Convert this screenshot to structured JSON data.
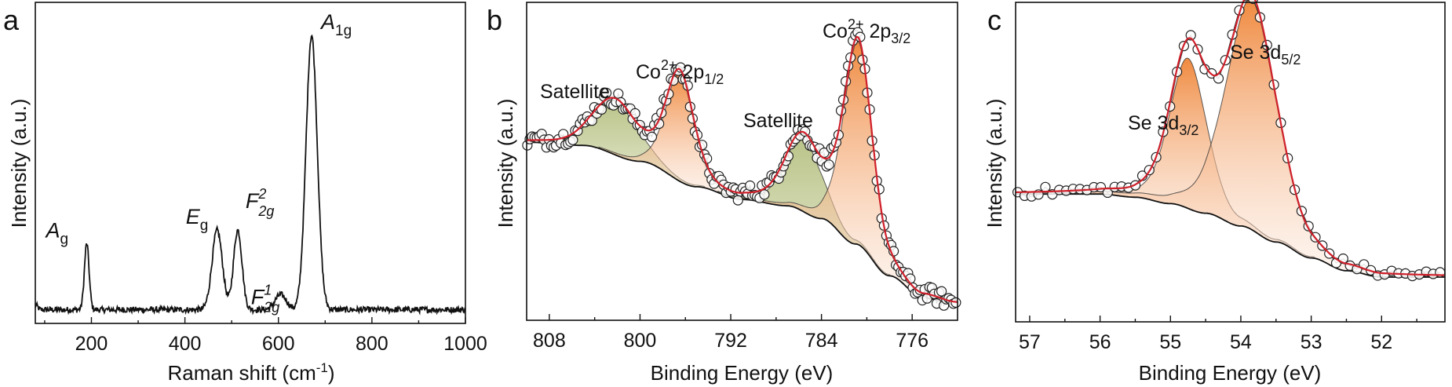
{
  "figure": {
    "colors": {
      "axis": "#111111",
      "spectrum": "#111111",
      "fit_envelope": "#d0202a",
      "orange_peak": "#f08a3c",
      "satellite_peak": "#b9c38c",
      "marker_edge": "#222222",
      "component_light": "#c8c8c8"
    }
  },
  "chart_data": [
    {
      "id": "a",
      "type": "line",
      "panel_label": "a",
      "title": "",
      "xlabel": "Raman shift (cm⁻¹)",
      "xlabel_main": "Raman shift (cm",
      "xlabel_sup": "-1",
      "xlabel_close": ")",
      "ylabel": "Intensity (a.u.)",
      "xlim": [
        80,
        1000
      ],
      "ylim": [
        -0.05,
        1.12
      ],
      "x_reversed": false,
      "xticks": [
        200,
        400,
        600,
        800,
        1000
      ],
      "xticks_minor": [
        100,
        300,
        500,
        700,
        900
      ],
      "yticks": [],
      "grid": false,
      "baseline": 0,
      "peaks": [
        {
          "label": "A_g",
          "main": "A",
          "sub": "g",
          "sup": "",
          "position": 190,
          "intensity": 0.24,
          "width": 5
        },
        {
          "label": "E_g",
          "main": "E",
          "sub": "g",
          "sup": "",
          "position": 469,
          "intensity": 0.29,
          "width": 11
        },
        {
          "label": "F2g(2)",
          "main": "F",
          "sub": "2g",
          "sup": "2",
          "position": 513,
          "intensity": 0.29,
          "width": 9
        },
        {
          "label": "F2g(1)",
          "main": "F",
          "sub": "2g",
          "sup": "1",
          "position": 605,
          "intensity": 0.055,
          "width": 12
        },
        {
          "label": "A_1g",
          "main": "A",
          "sub": "1g",
          "sup": "",
          "position": 671,
          "intensity": 1.0,
          "width": 12
        }
      ]
    },
    {
      "id": "b",
      "type": "scatter",
      "panel_label": "b",
      "title": "",
      "xlabel": "Binding Energy (eV)",
      "ylabel": "Intensity (a.u.)",
      "xlim": [
        810,
        772
      ],
      "ylim": [
        0,
        1.0
      ],
      "x_reversed": true,
      "xticks": [
        808,
        800,
        792,
        784,
        776
      ],
      "xticks_minor": [
        804,
        796,
        788,
        780
      ],
      "yticks": [],
      "grid": false,
      "background": {
        "description": "Shirley-type background",
        "points": [
          [
            810,
            0.56
          ],
          [
            805,
            0.55
          ],
          [
            800,
            0.5
          ],
          [
            795,
            0.42
          ],
          [
            791,
            0.38
          ],
          [
            787,
            0.36
          ],
          [
            784,
            0.32
          ],
          [
            781,
            0.24
          ],
          [
            778,
            0.14
          ],
          [
            775,
            0.07
          ],
          [
            772,
            0.05
          ]
        ]
      },
      "components": [
        {
          "name": "Satellite",
          "type": "satellite",
          "center": 802.2,
          "height": 0.17,
          "fwhm": 4.6
        },
        {
          "name": "Co2+ 2p1/2",
          "type": "main",
          "center": 796.5,
          "height": 0.34,
          "fwhm": 2.9
        },
        {
          "name": "Satellite",
          "type": "satellite",
          "center": 785.6,
          "height": 0.23,
          "fwhm": 3.8
        },
        {
          "name": "Co2+ 2p3/2",
          "type": "main",
          "center": 780.8,
          "height": 0.64,
          "fwhm": 3.0
        }
      ],
      "annotations": [
        {
          "text": "Satellite",
          "main": "Satellite",
          "sup": "",
          "sub": "",
          "near": 802
        },
        {
          "text": "Co2+ 2p1/2",
          "main": "Co",
          "sup": "2+",
          "mid": " 2p",
          "sub": "1/2",
          "near": 797
        },
        {
          "text": "Satellite",
          "main": "Satellite",
          "sup": "",
          "sub": "",
          "near": 786
        },
        {
          "text": "Co2+ 2p3/2",
          "main": "Co",
          "sup": "2+",
          "mid": " 2p",
          "sub": "3/2",
          "near": 780
        }
      ],
      "data_points": 180
    },
    {
      "id": "c",
      "type": "scatter",
      "panel_label": "c",
      "title": "",
      "xlabel": "Binding Energy (eV)",
      "ylabel": "Intensity (a.u.)",
      "xlim": [
        57.2,
        51.1
      ],
      "ylim": [
        0,
        1.0
      ],
      "x_reversed": true,
      "xticks": [
        57,
        56,
        55,
        54,
        53,
        52
      ],
      "xticks_minor": [
        56.5,
        55.5,
        54.5,
        53.5,
        52.5,
        51.5
      ],
      "yticks": [],
      "grid": false,
      "background": {
        "description": "Shirley-type background",
        "points": [
          [
            57.2,
            0.4
          ],
          [
            56.0,
            0.4
          ],
          [
            55.5,
            0.39
          ],
          [
            55.0,
            0.37
          ],
          [
            54.5,
            0.34
          ],
          [
            54.0,
            0.3
          ],
          [
            53.5,
            0.25
          ],
          [
            53.0,
            0.2
          ],
          [
            52.5,
            0.16
          ],
          [
            52.0,
            0.14
          ],
          [
            51.1,
            0.14
          ]
        ]
      },
      "components": [
        {
          "name": "Se 3d3/2",
          "type": "main",
          "center": 54.75,
          "height": 0.47,
          "fwhm": 0.62
        },
        {
          "name": "Se 3d5/2",
          "type": "main",
          "center": 53.85,
          "height": 0.72,
          "fwhm": 0.85
        }
      ],
      "annotations": [
        {
          "text": "Se 3d3/2",
          "main": "Se 3d",
          "sup": "",
          "sub": "3/2",
          "near": 55.7
        },
        {
          "text": "Se 3d5/2",
          "main": "Se 3d",
          "sup": "",
          "sub": "5/2",
          "near": 53.5
        }
      ],
      "data_points": 62
    }
  ]
}
